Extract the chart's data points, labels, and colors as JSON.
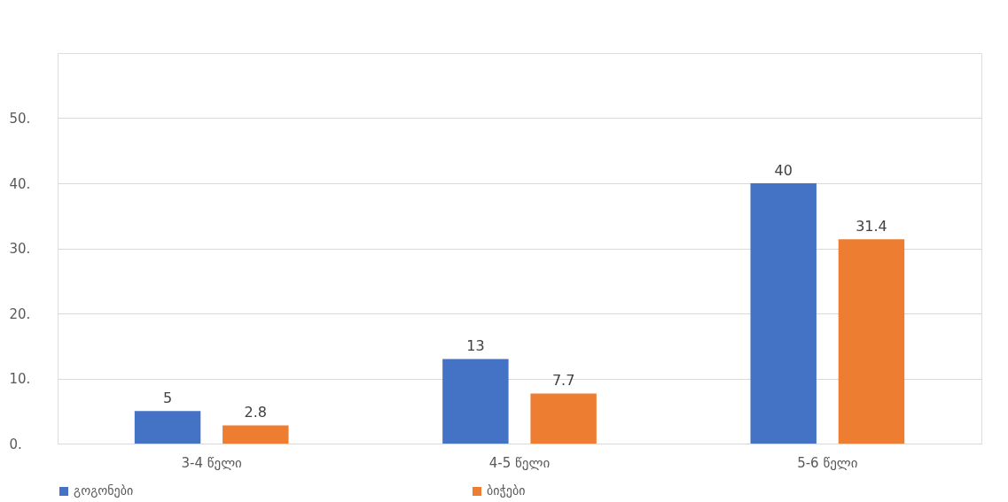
{
  "chart_data": {
    "type": "bar",
    "categories": [
      "3-4 წელი",
      "4-5 წელი",
      "5-6 წელი"
    ],
    "series": [
      {
        "name": "გოგონები",
        "color": "#4472c4",
        "values": [
          5,
          13,
          40
        ]
      },
      {
        "name": "ბიჭები",
        "color": "#ed7d31",
        "values": [
          2.8,
          7.7,
          31.4
        ]
      }
    ],
    "ylim": [
      0,
      60
    ],
    "yticks": [
      {
        "value": 0,
        "label": "0."
      },
      {
        "value": 10,
        "label": "10."
      },
      {
        "value": 20,
        "label": "20."
      },
      {
        "value": 30,
        "label": "30."
      },
      {
        "value": 40,
        "label": "40."
      },
      {
        "value": 50,
        "label": "50."
      }
    ],
    "data_labels": true,
    "grid": "y",
    "legend": "bottom"
  }
}
